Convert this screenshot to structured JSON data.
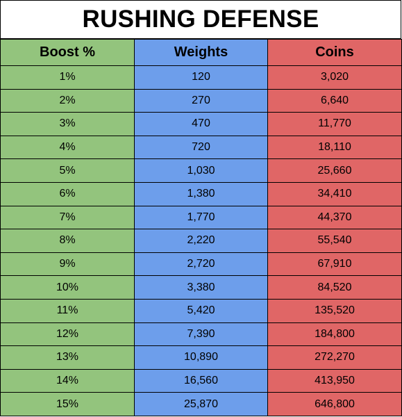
{
  "title": "RUSHING DEFENSE",
  "colors": {
    "boost": "#93c47d",
    "weights": "#6d9eeb",
    "coins": "#e06666"
  },
  "columns": [
    "Boost %",
    "Weights",
    "Coins"
  ],
  "rows": [
    [
      "1%",
      "120",
      "3,020"
    ],
    [
      "2%",
      "270",
      "6,640"
    ],
    [
      "3%",
      "470",
      "11,770"
    ],
    [
      "4%",
      "720",
      "18,110"
    ],
    [
      "5%",
      "1,030",
      "25,660"
    ],
    [
      "6%",
      "1,380",
      "34,410"
    ],
    [
      "7%",
      "1,770",
      "44,370"
    ],
    [
      "8%",
      "2,220",
      "55,540"
    ],
    [
      "9%",
      "2,720",
      "67,910"
    ],
    [
      "10%",
      "3,380",
      "84,520"
    ],
    [
      "11%",
      "5,420",
      "135,520"
    ],
    [
      "12%",
      "7,390",
      "184,800"
    ],
    [
      "13%",
      "10,890",
      "272,270"
    ],
    [
      "14%",
      "16,560",
      "413,950"
    ],
    [
      "15%",
      "25,870",
      "646,800"
    ]
  ]
}
